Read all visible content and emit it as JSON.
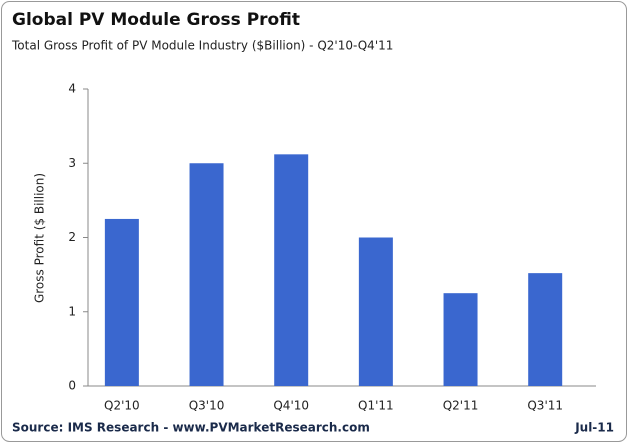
{
  "chart_data": {
    "type": "bar",
    "title": "Global PV Module Gross Profit",
    "subtitle": "Total Gross Profit of PV Module Industry ($Billion) - Q2'10-Q4'11",
    "y_label": "Gross Profit  ($ Billion)",
    "categories": [
      "Q2'10",
      "Q3'10",
      "Q4'10",
      "Q1'11",
      "Q2'11",
      "Q3'11"
    ],
    "values": [
      2.25,
      3.0,
      3.12,
      2.0,
      1.25,
      1.52
    ],
    "color": "#3a67cf",
    "ylim": [
      0,
      4
    ],
    "yticks": [
      0,
      1,
      2,
      3,
      4
    ],
    "grid": false,
    "source": "Source: IMS Research - www.PVMarketResearch.com",
    "date": "Jul-11"
  }
}
